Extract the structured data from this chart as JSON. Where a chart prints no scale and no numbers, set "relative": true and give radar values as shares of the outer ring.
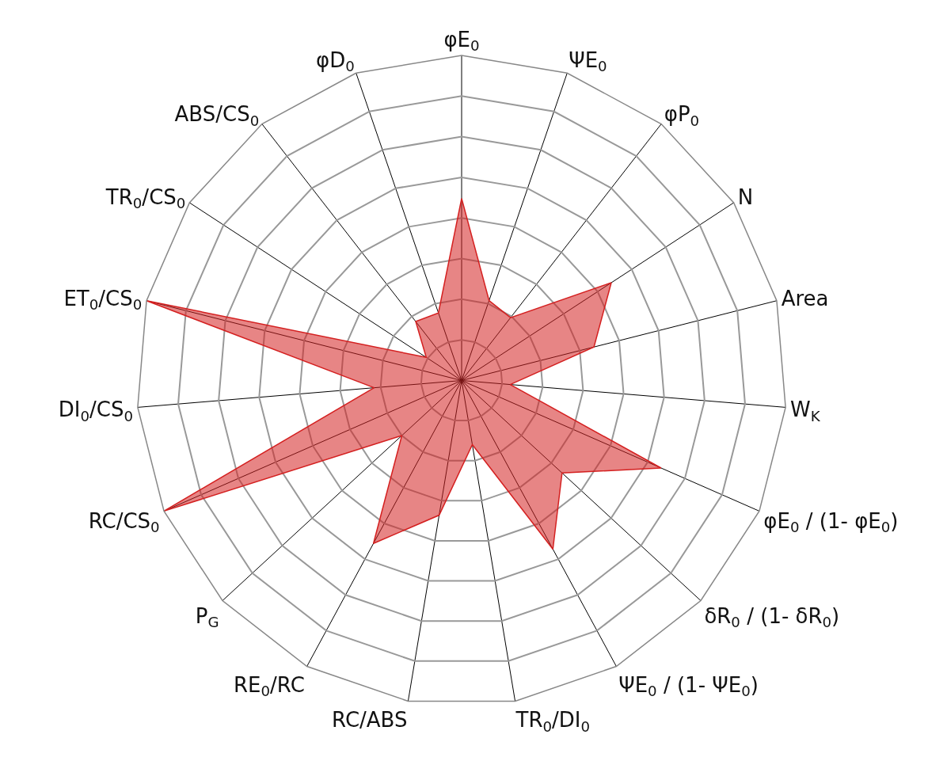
{
  "chart_data": {
    "type": "radar",
    "relative": true,
    "grid": true,
    "categories": [
      "φE$_{0}$",
      "ΨE$_{0}$",
      "φP$_{0}$",
      "N",
      "Area",
      "W$_{K}$",
      "φE$_{0}$ / (1- φE$_{0}$)",
      "δR$_{0}$ / (1- δR$_{0}$)",
      "ΨE$_{0}$ / (1- ΨE$_{0}$)",
      "TR$_{0}$/DI$_{0}$",
      "RC/ABS",
      "RE$_{0}$/RC",
      "P$_{G}$",
      "RC/CS$_{0}$",
      "DI$_{0}$/CS$_{0}$",
      "ET$_{0}$/CS$_{0}$",
      "TR$_{0}$/CS$_{0}$",
      "ABS/CS$_{0}$",
      "φD$_{0}$"
    ],
    "series": [
      {
        "color": "#d42020",
        "values": [
          0.56,
          0.26,
          0.245,
          0.55,
          0.42,
          0.15,
          0.67,
          0.42,
          0.59,
          0.2,
          0.42,
          0.57,
          0.25,
          1.0,
          0.27,
          1.0,
          0.13,
          0.23,
          0.22
        ]
      }
    ]
  }
}
